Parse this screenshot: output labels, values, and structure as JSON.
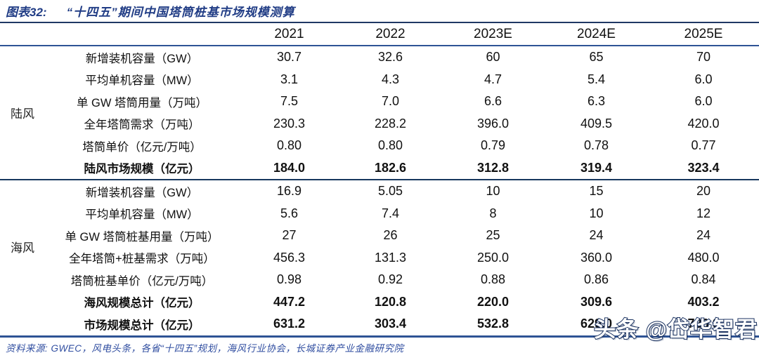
{
  "title": {
    "label": "图表32:",
    "text": "“十四五”期间中国塔筒桩基市场规模测算"
  },
  "table": {
    "year_headers": [
      "2021",
      "2022",
      "2023E",
      "2024E",
      "2025E"
    ],
    "sections": [
      {
        "group": "陆风",
        "rows": [
          {
            "label": "新增装机容量（GW）",
            "values": [
              "30.7",
              "32.6",
              "60",
              "65",
              "70"
            ],
            "bold": false
          },
          {
            "label": "平均单机容量（MW）",
            "values": [
              "3.1",
              "4.3",
              "4.7",
              "5.4",
              "6.0"
            ],
            "bold": false
          },
          {
            "label": "单 GW 塔筒用量（万吨）",
            "values": [
              "7.5",
              "7.0",
              "6.6",
              "6.3",
              "6.0"
            ],
            "bold": false
          },
          {
            "label": "全年塔筒需求（万吨）",
            "values": [
              "230.3",
              "228.2",
              "396.0",
              "409.5",
              "420.0"
            ],
            "bold": false
          },
          {
            "label": "塔筒单价（亿元/万吨）",
            "values": [
              "0.80",
              "0.80",
              "0.79",
              "0.78",
              "0.77"
            ],
            "bold": false
          },
          {
            "label": "陆风市场规模（亿元）",
            "values": [
              "184.0",
              "182.6",
              "312.8",
              "319.4",
              "323.4"
            ],
            "bold": true
          }
        ]
      },
      {
        "group": "海风",
        "rows": [
          {
            "label": "新增装机容量（GW）",
            "values": [
              "16.9",
              "5.05",
              "10",
              "15",
              "20"
            ],
            "bold": false
          },
          {
            "label": "平均单机容量（MW）",
            "values": [
              "5.6",
              "7.4",
              "8",
              "10",
              "12"
            ],
            "bold": false
          },
          {
            "label": "单 GW 塔筒桩基用量（万吨）",
            "values": [
              "27",
              "26",
              "25",
              "24",
              "24"
            ],
            "bold": false
          },
          {
            "label": "全年塔筒+桩基需求（万吨）",
            "values": [
              "456.3",
              "131.3",
              "250.0",
              "360.0",
              "480.0"
            ],
            "bold": false
          },
          {
            "label": "塔筒桩基单价（亿元/万吨）",
            "values": [
              "0.98",
              "0.92",
              "0.88",
              "0.86",
              "0.84"
            ],
            "bold": false
          },
          {
            "label": "海风规模总计（亿元）",
            "values": [
              "447.2",
              "120.8",
              "220.0",
              "309.6",
              "403.2"
            ],
            "bold": true
          }
        ]
      },
      {
        "group": "",
        "rows": [
          {
            "label": "市场规模总计（亿元）",
            "values": [
              "631.2",
              "303.4",
              "532.8",
              "629.0",
              "726.6"
            ],
            "bold": true
          }
        ]
      }
    ]
  },
  "footer": {
    "source": "资料来源: GWEC，风电头条，各省“十四五”规划，海风行业协会，长城证券产业金融研究院"
  },
  "watermark": {
    "text": "头条 @岱华智君"
  },
  "colors": {
    "title_navy": "#203C85",
    "title_rule": "#1F3864",
    "header_rule_blue": "#2E5395",
    "section_rule_dark": "#17375E",
    "bottom_rule_blue": "#2E5395",
    "footer_blue": "#2F4DA0",
    "watermark_outline": "#1B3260",
    "watermark_fill": "#FFFFFF",
    "body_text": "#111111"
  }
}
